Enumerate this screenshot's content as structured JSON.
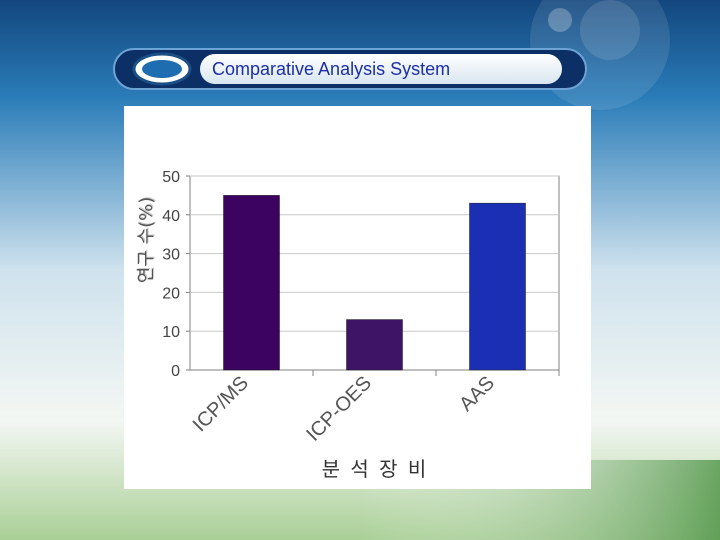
{
  "header": {
    "title": "Comparative Analysis System"
  },
  "colors": {
    "page_bg_top": "#1e6aa8",
    "page_bg_bottom": "#4f9447",
    "bar_1": "#3c0460",
    "bar_2": "#3e1466",
    "bar_3": "#1a2fb4"
  },
  "chart_data": {
    "type": "bar",
    "categories": [
      "ICP/MS",
      "ICP-OES",
      "AAS"
    ],
    "values": [
      45,
      13,
      43
    ],
    "title": "",
    "xlabel": "분 석 장 비",
    "ylabel": "연구 수(%)",
    "ylim": [
      0,
      50
    ],
    "yticks": [
      0,
      10,
      20,
      30,
      40,
      50
    ],
    "grid": true,
    "legend": "none"
  }
}
